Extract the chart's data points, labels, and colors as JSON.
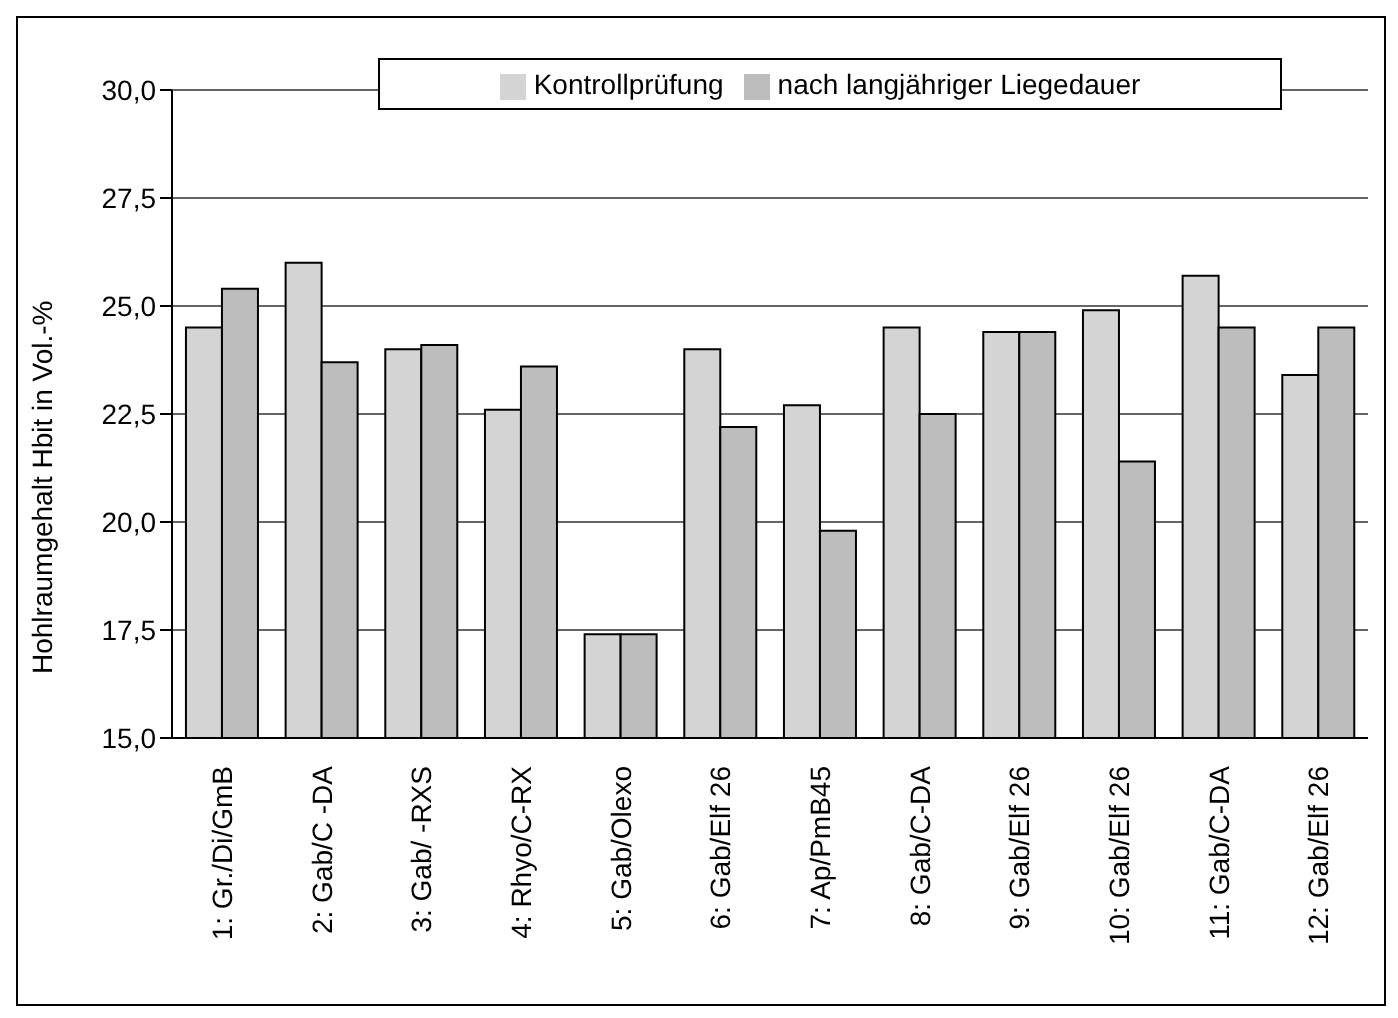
{
  "chart_data": {
    "type": "bar",
    "ylabel": "Hohlraumgehalt Hbit in Vol.-%",
    "categories": [
      "1: Gr./Di/GmB",
      "2: Gab/C -DA",
      "3: Gab/ -RXS",
      "4: Rhyo/C-RX",
      "5: Gab/Olexo",
      "6: Gab/Elf 26",
      "7: Ap/PmB45",
      "8: Gab/C-DA",
      "9: Gab/Elf 26",
      "10: Gab/Elf 26",
      "11: Gab/C-DA",
      "12: Gab/Elf 26"
    ],
    "series": [
      {
        "name": "Kontrollprüfung",
        "color": "#d4d4d4",
        "values": [
          24.5,
          26.0,
          24.0,
          22.6,
          17.4,
          24.0,
          22.7,
          24.5,
          24.4,
          24.9,
          25.7,
          23.4
        ]
      },
      {
        "name": "nach langjähriger Liegedauer",
        "color": "#bdbdbd",
        "values": [
          25.4,
          23.7,
          24.1,
          23.6,
          17.4,
          22.2,
          19.8,
          22.5,
          24.4,
          21.4,
          24.5,
          24.5
        ]
      }
    ],
    "ylim": [
      15,
      30
    ],
    "yticks": [
      {
        "value": 15,
        "label": "15,0"
      },
      {
        "value": 17.5,
        "label": "17,5"
      },
      {
        "value": 20,
        "label": "20,0"
      },
      {
        "value": 22.5,
        "label": "22,5"
      },
      {
        "value": 25,
        "label": "25,0"
      },
      {
        "value": 27.5,
        "label": "27,5"
      },
      {
        "value": 30,
        "label": "30,0"
      }
    ],
    "grid": "y",
    "legend": "top"
  }
}
